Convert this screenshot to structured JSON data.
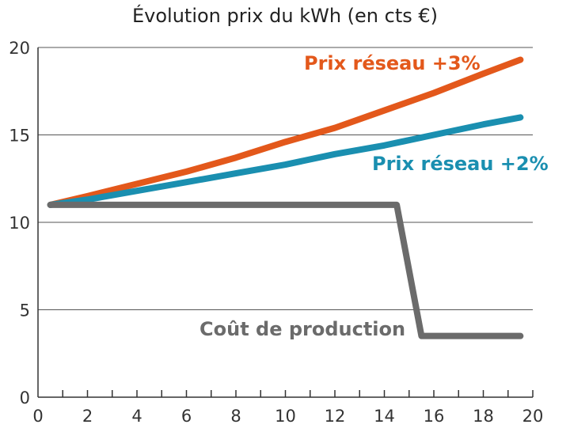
{
  "chart_data": {
    "type": "line",
    "title": "Évolution prix du kWh (en cts €)",
    "xlabel": "",
    "ylabel": "",
    "xlim": [
      0,
      20
    ],
    "ylim": [
      0,
      20
    ],
    "x_ticks": [
      0,
      2,
      4,
      6,
      8,
      10,
      12,
      14,
      16,
      18,
      20
    ],
    "y_ticks": [
      0,
      5,
      10,
      15,
      20
    ],
    "grid": "horizontal",
    "series": [
      {
        "name": "Prix réseau +3%",
        "color": "#e3581b",
        "x": [
          0.5,
          2,
          4,
          6,
          8,
          10,
          12,
          14,
          16,
          18,
          19.5
        ],
        "y": [
          11.0,
          11.5,
          12.2,
          12.9,
          13.7,
          14.6,
          15.4,
          16.4,
          17.4,
          18.5,
          19.3
        ]
      },
      {
        "name": "Prix réseau +2%",
        "color": "#1a8fb0",
        "x": [
          0.5,
          2,
          4,
          6,
          8,
          10,
          12,
          14,
          16,
          18,
          19.5
        ],
        "y": [
          11.0,
          11.3,
          11.8,
          12.3,
          12.8,
          13.3,
          13.9,
          14.4,
          15.0,
          15.6,
          16.0
        ]
      },
      {
        "name": "Coût de production",
        "color": "#6b6b6b",
        "x": [
          0.5,
          14.5,
          15.5,
          19.5
        ],
        "y": [
          11.0,
          11.0,
          3.5,
          3.5
        ]
      }
    ]
  }
}
